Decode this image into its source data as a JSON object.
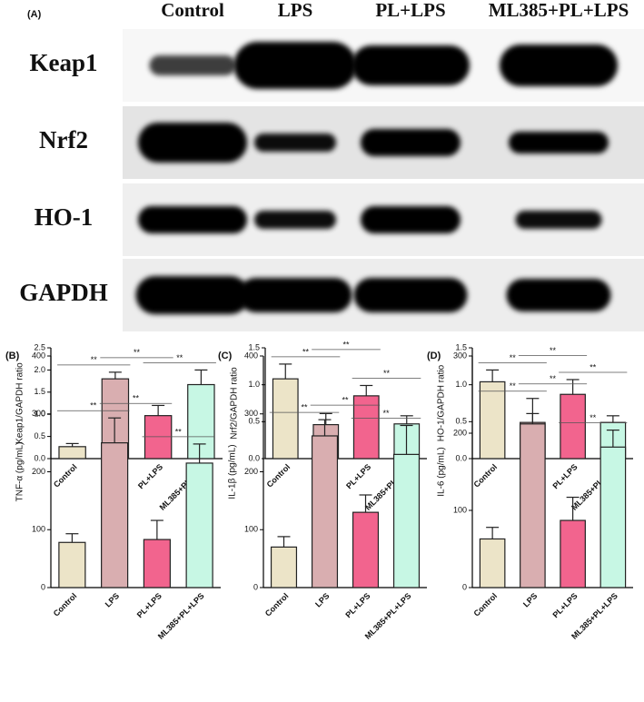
{
  "blot": {
    "panel_label": "(A)",
    "columns": [
      "Control",
      "LPS",
      "PL+LPS",
      "ML385+PL+LPS"
    ],
    "rows": [
      "Keap1",
      "Nrf2",
      "HO-1",
      "GAPDH"
    ]
  },
  "chart_data": [
    {
      "type": "bar",
      "y_label": "Keap1/GAPDH ratio",
      "categories": [
        "Control",
        "LPS",
        "PL+LPS",
        "ML385+PL+LPS"
      ],
      "values": [
        0.27,
        1.8,
        0.97,
        1.67
      ],
      "errors": [
        0.07,
        0.15,
        0.23,
        0.33
      ],
      "colors": [
        "#ece4c8",
        "#d9aeb0",
        "#f2648e",
        "#c7f7e4"
      ],
      "ylim": [
        0,
        2.5
      ],
      "yticks": [
        {
          "value": 0,
          "label": "0.0"
        },
        0.5,
        {
          "value": 1,
          "label": "1.0"
        },
        1.5,
        {
          "value": 2,
          "label": "2.0"
        },
        2.5
      ],
      "significance": [
        {
          "pair": [
            0,
            1
          ],
          "label": "**"
        },
        {
          "pair": [
            1,
            2
          ],
          "label": "**"
        },
        {
          "pair": [
            2,
            3
          ],
          "label": "**"
        }
      ]
    },
    {
      "type": "bar",
      "y_label": "Nrf2/GAPDH ratio",
      "categories": [
        "Control",
        "LPS",
        "PL+LPS",
        "ML385+PL+LPS"
      ],
      "values": [
        1.08,
        0.46,
        0.85,
        0.47
      ],
      "errors": [
        0.2,
        0.15,
        0.14,
        0.11
      ],
      "colors": [
        "#ece4c8",
        "#d9aeb0",
        "#f2648e",
        "#c7f7e4"
      ],
      "ylim": [
        0,
        1.5
      ],
      "yticks": [
        {
          "value": 0,
          "label": "0.0"
        },
        0.5,
        {
          "value": 1,
          "label": "1.0"
        },
        1.5
      ],
      "significance": [
        {
          "pair": [
            0,
            1
          ],
          "label": "**"
        },
        {
          "pair": [
            1,
            2
          ],
          "label": "**"
        },
        {
          "pair": [
            2,
            3
          ],
          "label": "**"
        }
      ]
    },
    {
      "type": "bar",
      "y_label": "HO-1/GAPDH ratio",
      "categories": [
        "Control",
        "LPS",
        "PL+LPS",
        "ML385+PL+LPS"
      ],
      "values": [
        1.04,
        0.49,
        0.87,
        0.49
      ],
      "errors": [
        0.16,
        0.12,
        0.2,
        0.09
      ],
      "colors": [
        "#ece4c8",
        "#d9aeb0",
        "#f2648e",
        "#c7f7e4"
      ],
      "ylim": [
        0,
        1.5
      ],
      "yticks": [
        {
          "value": 0,
          "label": "0.0"
        },
        0.5,
        {
          "value": 1,
          "label": "1.0"
        },
        1.5
      ],
      "significance": [
        {
          "pair": [
            0,
            1
          ],
          "label": "**"
        },
        {
          "pair": [
            1,
            2
          ],
          "label": "**"
        },
        {
          "pair": [
            2,
            3
          ],
          "label": "**"
        }
      ]
    },
    {
      "type": "bar",
      "panel_label": "(B)",
      "y_label": "TNF-α (pg/mL)",
      "categories": [
        "Control",
        "LPS",
        "PL+LPS",
        "ML385+PL+LPS"
      ],
      "values": [
        78,
        250,
        83,
        215
      ],
      "errors": [
        15,
        43,
        33,
        33
      ],
      "colors": [
        "#ece4c8",
        "#d9aeb0",
        "#f2648e",
        "#c7f7e4"
      ],
      "ylim": [
        0,
        400
      ],
      "yticks": [
        0,
        100,
        200,
        300,
        400
      ],
      "significance": [
        {
          "pair": [
            0,
            1
          ],
          "label": "**"
        },
        {
          "pair": [
            1,
            2
          ],
          "label": "**"
        },
        {
          "pair": [
            2,
            3
          ],
          "label": "**"
        }
      ]
    },
    {
      "type": "bar",
      "panel_label": "(C)",
      "y_label": "IL-1β (pg/mL)",
      "categories": [
        "Control",
        "LPS",
        "PL+LPS",
        "ML385+PL+LPS"
      ],
      "values": [
        70,
        262,
        130,
        230
      ],
      "errors": [
        18,
        28,
        30,
        50
      ],
      "colors": [
        "#ece4c8",
        "#d9aeb0",
        "#f2648e",
        "#c7f7e4"
      ],
      "ylim": [
        0,
        400
      ],
      "yticks": [
        0,
        100,
        200,
        300,
        400
      ],
      "significance": [
        {
          "pair": [
            0,
            1
          ],
          "label": "**"
        },
        {
          "pair": [
            1,
            2
          ],
          "label": "**"
        },
        {
          "pair": [
            2,
            3
          ],
          "label": "**"
        }
      ]
    },
    {
      "type": "bar",
      "panel_label": "(D)",
      "y_label": "IL-6 (pg/mL)",
      "categories": [
        "Control",
        "LPS",
        "PL+LPS",
        "ML385+PL+LPS"
      ],
      "values": [
        63,
        212,
        87,
        182
      ],
      "errors": [
        15,
        33,
        30,
        22
      ],
      "colors": [
        "#ece4c8",
        "#d9aeb0",
        "#f2648e",
        "#c7f7e4"
      ],
      "ylim": [
        0,
        300
      ],
      "yticks": [
        0,
        100,
        200,
        300
      ],
      "significance": [
        {
          "pair": [
            0,
            1
          ],
          "label": "**"
        },
        {
          "pair": [
            1,
            2
          ],
          "label": "**"
        },
        {
          "pair": [
            2,
            3
          ],
          "label": "**"
        }
      ]
    }
  ]
}
